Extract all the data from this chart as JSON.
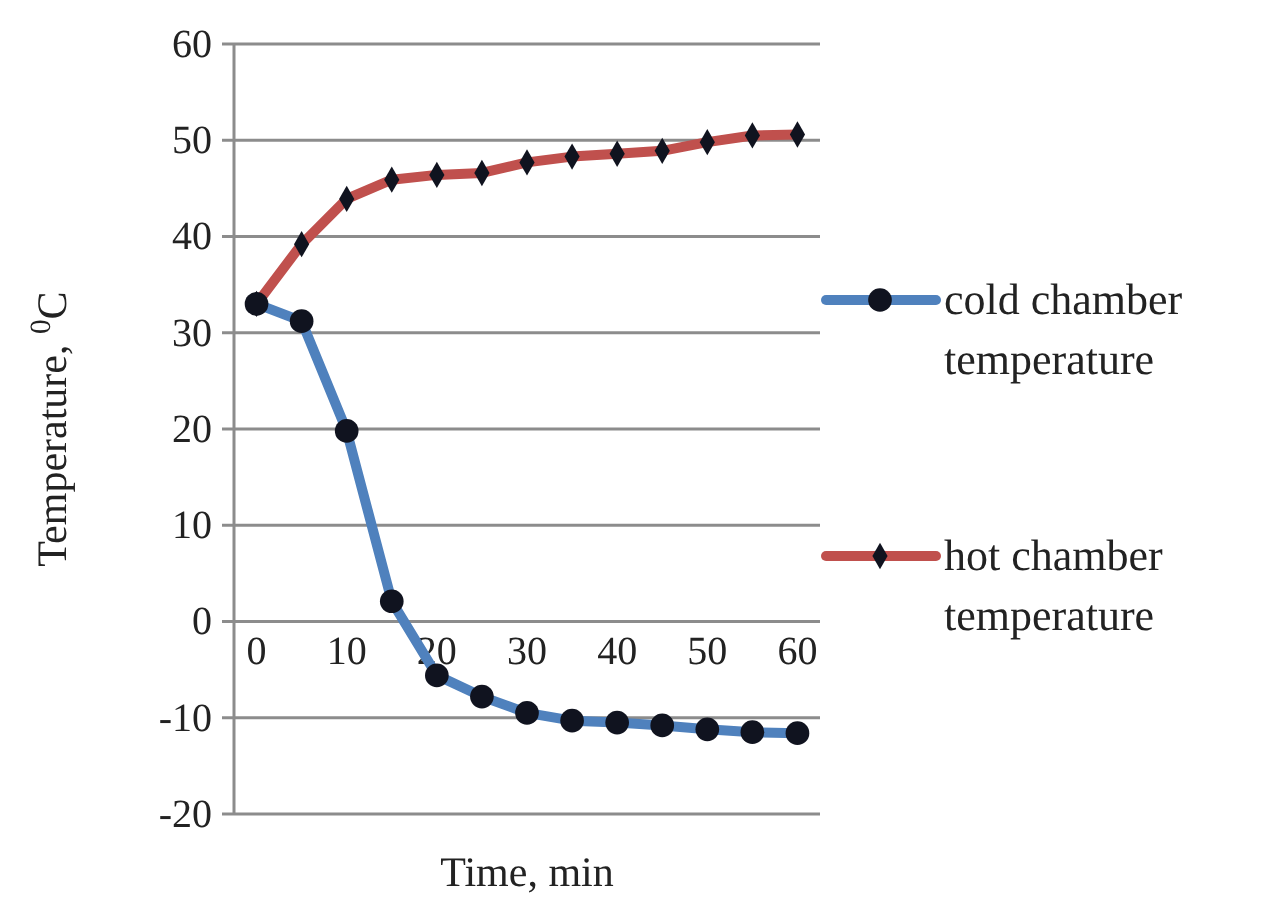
{
  "chart_data": {
    "type": "line",
    "xlabel": "Time, min",
    "ylabel": "Temperature, $^{0}$C",
    "x": [
      0,
      5,
      10,
      15,
      20,
      25,
      30,
      35,
      40,
      45,
      50,
      55,
      60
    ],
    "series": [
      {
        "name": "cold chamber temperature",
        "color": "#4f81bd",
        "marker": "circle",
        "values": [
          33,
          31.2,
          19.8,
          2.1,
          -5.6,
          -7.8,
          -9.5,
          -10.3,
          -10.5,
          -10.8,
          -11.2,
          -11.5,
          -11.6
        ]
      },
      {
        "name": "hot chamber temperature",
        "color": "#c0504d",
        "marker": "diamond",
        "values": [
          33,
          39.2,
          43.9,
          45.9,
          46.4,
          46.6,
          47.7,
          48.3,
          48.6,
          48.9,
          49.8,
          50.5,
          50.6
        ]
      }
    ],
    "xlim": [
      -2.5,
      62.5
    ],
    "xticks": [
      0,
      10,
      20,
      30,
      40,
      50,
      60
    ],
    "ylim": [
      -20,
      60
    ],
    "yticks": [
      -20,
      -10,
      0,
      10,
      20,
      30,
      40,
      50,
      60
    ],
    "grid": "y",
    "legend": "right"
  }
}
